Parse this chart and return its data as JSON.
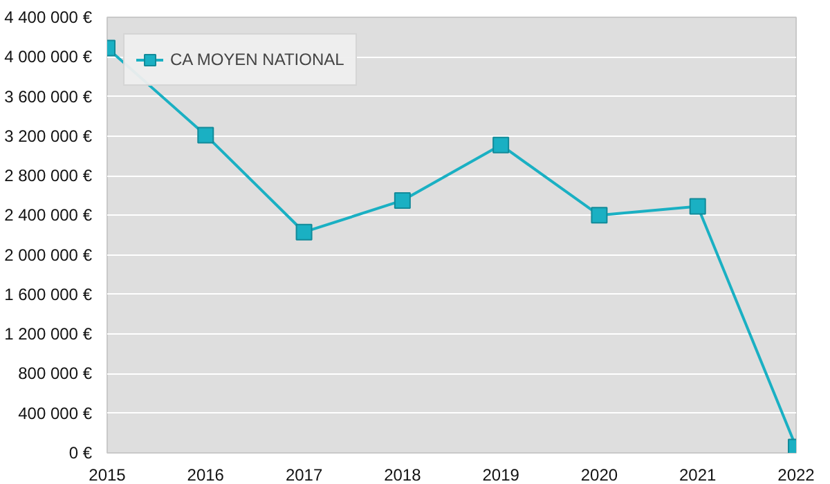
{
  "chart_data": {
    "type": "line",
    "x": [
      2015,
      2016,
      2017,
      2018,
      2019,
      2020,
      2021,
      2022
    ],
    "series": [
      {
        "name": "CA MOYEN NATIONAL",
        "color": "#1ab0c3",
        "values": [
          4090000,
          3210000,
          2230000,
          2550000,
          3110000,
          2400000,
          2490000,
          60000
        ]
      }
    ],
    "xlim": [
      2015,
      2022
    ],
    "xticks": [
      2015,
      2016,
      2017,
      2018,
      2019,
      2020,
      2021,
      2022
    ],
    "ylim": [
      0,
      4400000
    ],
    "yticks": [
      {
        "value": 0,
        "label": "0 €"
      },
      {
        "value": 400000,
        "label": "400 000 €"
      },
      {
        "value": 800000,
        "label": "800 000 €"
      },
      {
        "value": 1200000,
        "label": "1 200 000 €"
      },
      {
        "value": 1600000,
        "label": "1 600 000 €"
      },
      {
        "value": 2000000,
        "label": "2 000 000 €"
      },
      {
        "value": 2400000,
        "label": "2 400 000 €"
      },
      {
        "value": 2800000,
        "label": "2 800 000 €"
      },
      {
        "value": 3200000,
        "label": "3 200 000 €"
      },
      {
        "value": 3600000,
        "label": "3 600 000 €"
      },
      {
        "value": 4000000,
        "label": "4 000 000 €"
      },
      {
        "value": 4400000,
        "label": "4 400 000 €"
      }
    ],
    "grid": "y",
    "legend": "top left",
    "marker": "square",
    "line_style": "solid"
  }
}
